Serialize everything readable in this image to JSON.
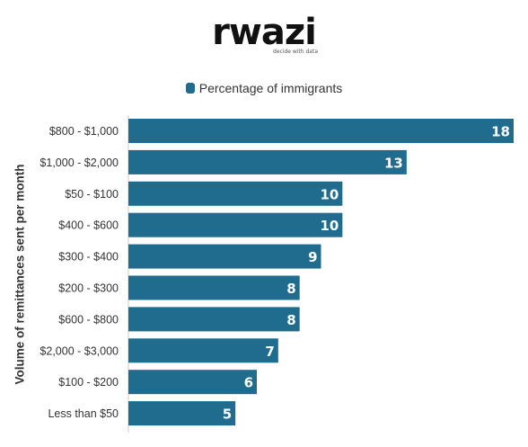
{
  "brand": {
    "name": "rwazi",
    "tagline": "decide with data"
  },
  "colors": {
    "bar": "#1f6c8e",
    "label_text": "#ffffff",
    "tick_text": "#333333"
  },
  "chart_data": {
    "type": "bar",
    "orientation": "horizontal",
    "categories": [
      "$800 - $1,000",
      "$1,000 - $2,000",
      "$50 - $100",
      "$400 - $600",
      "$300 - $400",
      "$200 - $300",
      "$600 - $800",
      "$2,000 - $3,000",
      "$100 - $200",
      "Less than $50"
    ],
    "series": [
      {
        "name": "Percentage of immigrants",
        "values": [
          18,
          13,
          10,
          10,
          9,
          8,
          8,
          7,
          6,
          5
        ]
      }
    ],
    "title": "",
    "xlabel": "",
    "ylabel": "Volume of remittances sent per month",
    "xlim": [
      0,
      18
    ],
    "legend": "top-center",
    "grid": false,
    "data_labels": true
  }
}
